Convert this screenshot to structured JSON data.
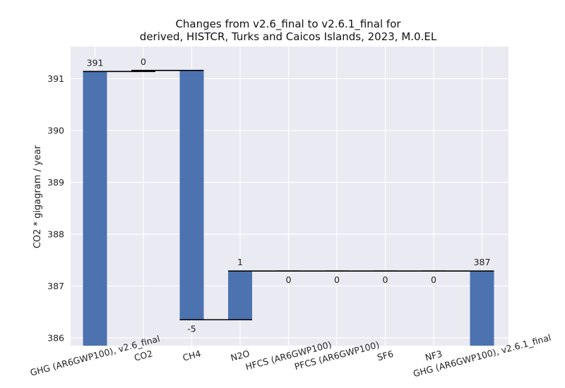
{
  "chart_data": {
    "type": "bar",
    "subtype": "waterfall",
    "title_line1": "Changes from v2.6_final to v2.6.1_final for",
    "title_line2": "derived, HISTCR, Turks and Caicos Islands, 2023, M.0.EL",
    "xlabel": "",
    "ylabel": "CO2 * gigagram / year",
    "ylim": [
      385.85,
      391.62
    ],
    "yticks": [
      386,
      387,
      388,
      389,
      390,
      391
    ],
    "grid": true,
    "categories": [
      "GHG (AR6GWP100), v2.6_final",
      "CO2",
      "CH4",
      "N2O",
      "HFCS (AR6GWP100)",
      "PFCS (AR6GWP100)",
      "SF6",
      "NF3",
      "GHG (AR6GWP100), v2.6.1_final"
    ],
    "bars": [
      {
        "kind": "total",
        "bottom": 385.85,
        "top": 391.14,
        "label": "391"
      },
      {
        "kind": "delta",
        "bottom": 391.14,
        "top": 391.16,
        "label": "0"
      },
      {
        "kind": "delta",
        "bottom": 386.35,
        "top": 391.16,
        "label": "-5"
      },
      {
        "kind": "delta",
        "bottom": 386.35,
        "top": 387.29,
        "label": "1"
      },
      {
        "kind": "delta",
        "bottom": 387.29,
        "top": 387.29,
        "label": "0"
      },
      {
        "kind": "delta",
        "bottom": 387.29,
        "top": 387.29,
        "label": "0"
      },
      {
        "kind": "delta",
        "bottom": 387.29,
        "top": 387.29,
        "label": "0"
      },
      {
        "kind": "delta",
        "bottom": 387.29,
        "top": 387.29,
        "label": "0"
      },
      {
        "kind": "total",
        "bottom": 385.85,
        "top": 387.29,
        "label": "387"
      }
    ],
    "connectors": [
      391.14,
      391.16,
      386.35,
      387.29,
      387.29,
      387.29,
      387.29,
      387.29
    ],
    "bar_color": "#4c72b0",
    "plot_bg": "#eaeaf2",
    "grid_color": "#ffffff",
    "connector_color": "#000000"
  }
}
